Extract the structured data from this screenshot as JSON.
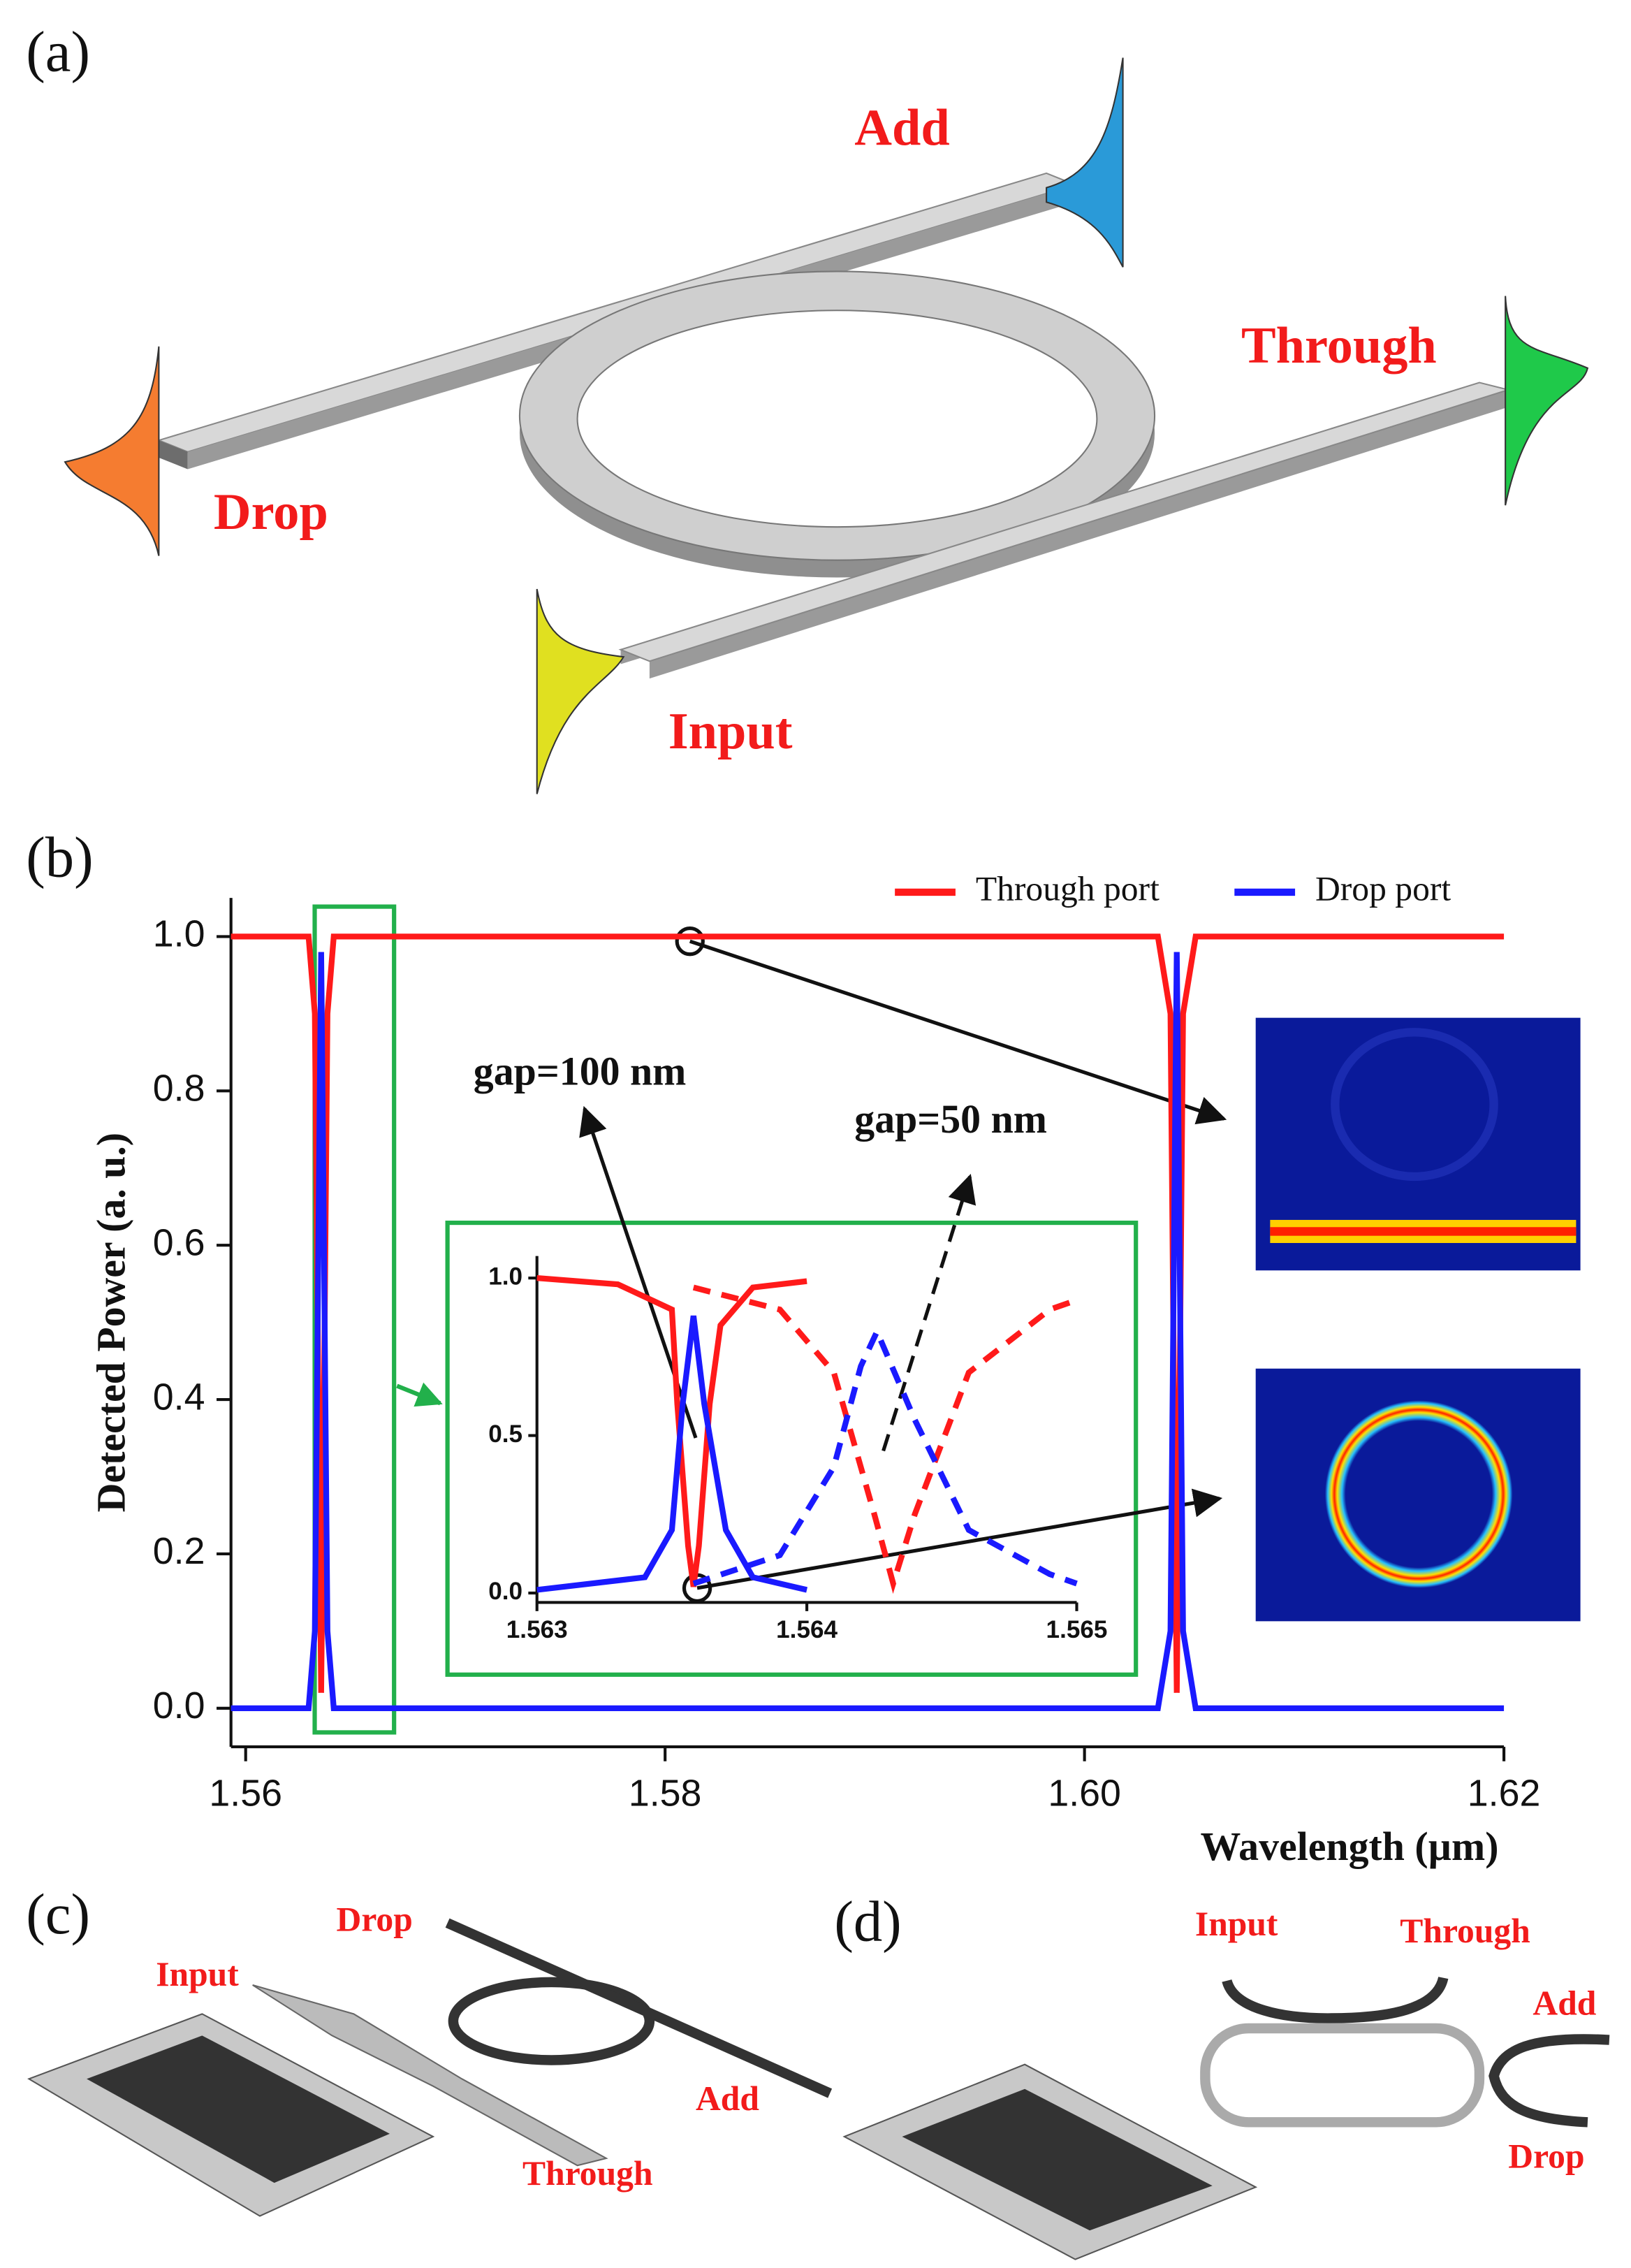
{
  "panel_a": {
    "label": "(a)",
    "ports": [
      "Add",
      "Through",
      "Drop",
      "Input"
    ]
  },
  "chart_data": {
    "type": "line",
    "panel_label": "(b)",
    "x_label": "Wavelength (µm)",
    "y_label": "Detected Power (a. u.)",
    "xlim": [
      1.5593,
      1.62
    ],
    "ylim": [
      -0.05,
      1.05
    ],
    "xticks": [
      1.56,
      1.58,
      {
        "value": 1.6,
        "label": "1.60"
      },
      1.62
    ],
    "yticks": [
      {
        "value": 0,
        "label": "0.0"
      },
      0.2,
      0.4,
      0.6,
      0.8,
      {
        "value": 1,
        "label": "1.0"
      }
    ],
    "legend": "upper right",
    "x": [
      1.5593,
      1.563,
      1.5633,
      1.5635,
      1.5636,
      1.5637,
      1.5639,
      1.5642,
      1.6035,
      1.6041,
      1.6043,
      1.6044,
      1.6045,
      1.6047,
      1.6053,
      1.62
    ],
    "series": [
      {
        "name": "Through port",
        "color": "#ff1a1a",
        "values": [
          1,
          1,
          0.9,
          0.3,
          0.02,
          0.3,
          0.9,
          1,
          1,
          0.9,
          0.3,
          0.02,
          0.3,
          0.9,
          1,
          1
        ]
      },
      {
        "name": "Drop port",
        "color": "#1a1aff",
        "values": [
          0,
          0,
          0.1,
          0.7,
          0.98,
          0.7,
          0.1,
          0,
          0,
          0.1,
          0.7,
          0.98,
          0.7,
          0.1,
          0,
          0
        ]
      }
    ],
    "annotations": [
      "gap=100 nm",
      "gap=50 nm"
    ],
    "inset": {
      "xlim": [
        1.563,
        1.565
      ],
      "ylim": [
        -0.03,
        1.07
      ],
      "xticks": [
        1.563,
        1.564,
        1.565
      ],
      "yticks": [
        {
          "value": 0,
          "label": "0.0"
        },
        0.5,
        {
          "value": 1,
          "label": "1.0"
        }
      ],
      "series": [
        {
          "color": "#ff1a1a",
          "style": "solid",
          "x": [
            1.563,
            1.5633,
            1.5635,
            1.56352,
            1.56356,
            1.56358,
            1.5636,
            1.56364,
            1.56368,
            1.5638,
            1.564
          ],
          "values": [
            1,
            0.98,
            0.9,
            0.6,
            0.15,
            0.02,
            0.15,
            0.6,
            0.85,
            0.97,
            0.99
          ]
        },
        {
          "color": "#1a1aff",
          "style": "solid",
          "x": [
            1.563,
            1.5634,
            1.5635,
            1.56354,
            1.56358,
            1.56362,
            1.5637,
            1.5638,
            1.564
          ],
          "values": [
            0.01,
            0.05,
            0.2,
            0.6,
            0.88,
            0.6,
            0.2,
            0.05,
            0.01
          ]
        },
        {
          "color": "#ff1a1a",
          "style": "dashed",
          "x": [
            1.56358,
            1.5639,
            1.5641,
            1.56425,
            1.56432,
            1.5644,
            1.5646,
            1.5649,
            1.565
          ],
          "values": [
            0.97,
            0.9,
            0.7,
            0.25,
            0.03,
            0.25,
            0.7,
            0.9,
            0.93
          ]
        },
        {
          "color": "#1a1aff",
          "style": "dashed",
          "x": [
            1.56358,
            1.5639,
            1.5641,
            1.5642,
            1.56426,
            1.5644,
            1.5646,
            1.5649,
            1.565
          ],
          "values": [
            0.03,
            0.12,
            0.4,
            0.72,
            0.83,
            0.55,
            0.2,
            0.06,
            0.03
          ]
        }
      ]
    }
  },
  "panel_c": {
    "label": "(c)",
    "ports": [
      "Drop",
      "Input",
      "Add",
      "Through"
    ]
  },
  "panel_d": {
    "label": "(d)",
    "ports": [
      "Input",
      "Through",
      "Add",
      "Drop"
    ]
  }
}
